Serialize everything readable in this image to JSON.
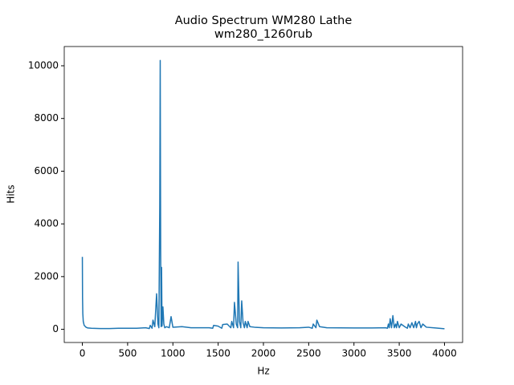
{
  "chart_data": {
    "type": "line",
    "title": "Audio Spectrum WM280 Lathe",
    "subtitle": "wm280_1260rub",
    "x_label": "Hz",
    "y_label": "Hits",
    "color": "#1f77b4",
    "x": [
      0,
      2,
      5,
      10,
      20,
      40,
      60,
      100,
      200,
      300,
      400,
      500,
      600,
      700,
      740,
      750,
      770,
      780,
      800,
      820,
      835,
      845,
      855,
      860,
      865,
      870,
      875,
      880,
      890,
      900,
      910,
      930,
      960,
      980,
      1000,
      1100,
      1200,
      1300,
      1400,
      1440,
      1450,
      1500,
      1540,
      1550,
      1600,
      1640,
      1650,
      1670,
      1680,
      1700,
      1715,
      1720,
      1735,
      1750,
      1760,
      1775,
      1790,
      1800,
      1820,
      1830,
      1850,
      1900,
      2000,
      2200,
      2400,
      2500,
      2540,
      2550,
      2580,
      2590,
      2620,
      2700,
      3000,
      3200,
      3350,
      3370,
      3380,
      3390,
      3400,
      3415,
      3430,
      3445,
      3460,
      3470,
      3480,
      3500,
      3520,
      3560,
      3590,
      3600,
      3620,
      3640,
      3660,
      3680,
      3690,
      3700,
      3720,
      3740,
      3760,
      3800,
      3900,
      4000
    ],
    "values": [
      2750,
      1200,
      600,
      300,
      150,
      80,
      50,
      40,
      30,
      30,
      40,
      40,
      40,
      60,
      30,
      150,
      40,
      350,
      100,
      1350,
      200,
      60,
      4700,
      10200,
      3000,
      100,
      2350,
      120,
      850,
      200,
      60,
      100,
      60,
      480,
      80,
      100,
      60,
      60,
      60,
      40,
      150,
      120,
      40,
      180,
      200,
      60,
      300,
      60,
      1020,
      200,
      60,
      2550,
      300,
      60,
      1080,
      250,
      60,
      300,
      60,
      300,
      100,
      80,
      60,
      50,
      60,
      80,
      40,
      200,
      60,
      350,
      100,
      60,
      50,
      50,
      60,
      40,
      200,
      60,
      400,
      60,
      520,
      60,
      200,
      60,
      300,
      60,
      200,
      100,
      40,
      200,
      60,
      250,
      60,
      300,
      60,
      200,
      300,
      60,
      200,
      80,
      50,
      20
    ],
    "xlim": [
      -200,
      4200
    ],
    "ylim": [
      -500,
      10730
    ],
    "xticks": [
      0,
      500,
      1000,
      1500,
      2000,
      2500,
      3000,
      3500,
      4000
    ],
    "yticks": [
      0,
      2000,
      4000,
      6000,
      8000,
      10000
    ]
  }
}
